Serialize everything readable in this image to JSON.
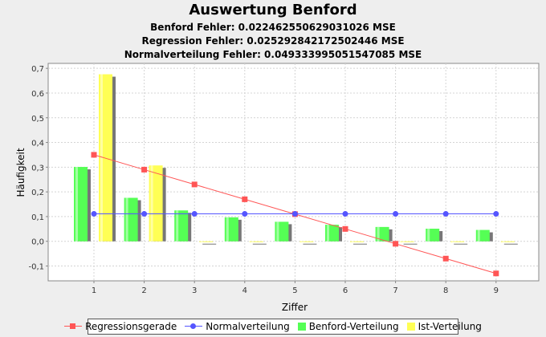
{
  "chart_data": {
    "type": "bar",
    "title": "Auswertung Benford",
    "subtitles": [
      "Benford Fehler: 0.022462550629031026 MSE",
      "Regression Fehler: 0.025292842172502446 MSE",
      "Normalverteilung Fehler: 0.049333995051547085 MSE"
    ],
    "xlabel": "Ziffer",
    "ylabel": "Häufigkeit",
    "categories": [
      "1",
      "2",
      "3",
      "4",
      "5",
      "6",
      "7",
      "8",
      "9"
    ],
    "ylim": [
      -0.16,
      0.72
    ],
    "yticks": [
      "-0,1",
      "0,0",
      "0,1",
      "0,2",
      "0,3",
      "0,4",
      "0,5",
      "0,6",
      "0,7"
    ],
    "ytick_values": [
      -0.1,
      0.0,
      0.1,
      0.2,
      0.3,
      0.4,
      0.5,
      0.6,
      0.7
    ],
    "grid": true,
    "legend_position": "bottom",
    "series": [
      {
        "name": "Regressionsgerade",
        "kind": "line",
        "color": "#ff5555",
        "marker": "square",
        "values": [
          0.35,
          0.29,
          0.23,
          0.17,
          0.11,
          0.05,
          -0.01,
          -0.07,
          -0.13
        ]
      },
      {
        "name": "Normalverteilung",
        "kind": "line",
        "color": "#5555ff",
        "marker": "circle",
        "values": [
          0.111,
          0.111,
          0.111,
          0.111,
          0.111,
          0.111,
          0.111,
          0.111,
          0.111
        ]
      },
      {
        "name": "Benford-Verteilung",
        "kind": "bar",
        "color": "#55ff55",
        "values": [
          0.301,
          0.176,
          0.125,
          0.097,
          0.079,
          0.067,
          0.058,
          0.051,
          0.046
        ]
      },
      {
        "name": "Ist-Verteilung",
        "kind": "bar",
        "color": "#ffff55",
        "values": [
          0.676,
          0.307,
          0.0,
          0.0,
          0.0,
          0.0,
          0.0,
          0.0,
          0.0
        ]
      }
    ]
  }
}
